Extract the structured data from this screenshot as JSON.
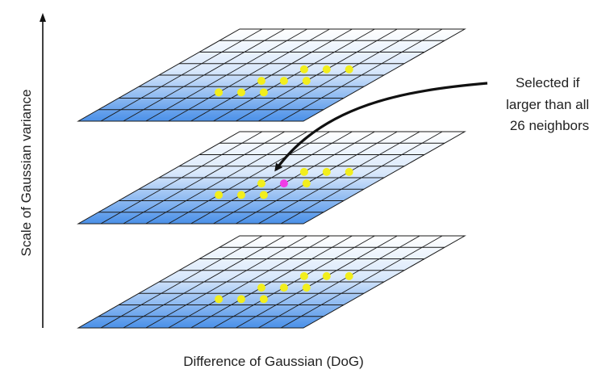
{
  "labels": {
    "y_axis": "Scale of Gaussian variance",
    "x_axis": "Difference of Gaussian (DoG)",
    "annotation": [
      "Selected if",
      "larger than all",
      "26 neighbors"
    ]
  },
  "layers": [
    {
      "name": "upper-dog-layer",
      "center_highlighted": false
    },
    {
      "name": "middle-dog-layer",
      "center_highlighted": true
    },
    {
      "name": "lower-dog-layer",
      "center_highlighted": false
    }
  ],
  "colors": {
    "grid_line": "#1a1a1a",
    "layer_top": "#ffffff",
    "layer_bottom": "#4a90e8",
    "neighbor_dot": "#f2ee1c",
    "selected_dot": "#f03ce6",
    "arrow": "#111111",
    "text": "#222222"
  }
}
